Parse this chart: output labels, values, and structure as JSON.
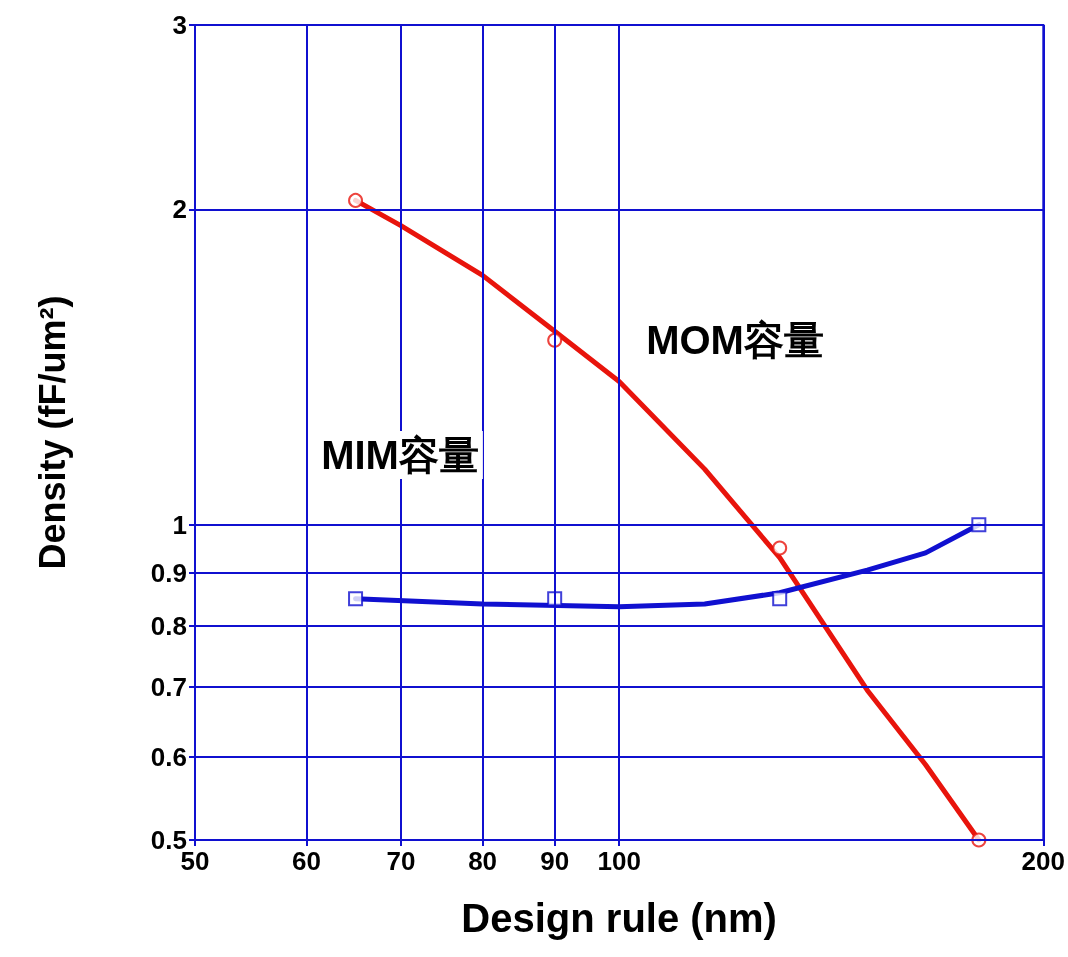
{
  "chart_data": {
    "type": "line",
    "xlabel": "Design rule (nm)",
    "ylabel": "Density (fF/um²)",
    "log": "xy",
    "grid": true,
    "xlim": [
      50,
      200
    ],
    "ylim": [
      0.5,
      3
    ],
    "xticks": [
      50,
      60,
      70,
      80,
      90,
      100,
      200
    ],
    "yticks": [
      0.5,
      0.6,
      0.7,
      0.8,
      0.9,
      1,
      2,
      3
    ],
    "series": [
      {
        "color": "#e8140c",
        "marker": "none",
        "x": [
          65,
          70,
          80,
          90,
          100,
          115,
          130,
          150,
          165,
          180
        ],
        "values": [
          2.04,
          1.93,
          1.73,
          1.53,
          1.37,
          1.13,
          0.93,
          0.695,
          0.59,
          0.5
        ]
      },
      {
        "type": "scatter",
        "color": "#e8140c",
        "marker": "circle",
        "x": [
          65,
          90,
          130,
          180
        ],
        "values": [
          2.04,
          1.5,
          0.95,
          0.5
        ]
      },
      {
        "color": "#1010d0",
        "marker": "none",
        "x": [
          65,
          80,
          100,
          115,
          130,
          150,
          165,
          180
        ],
        "values": [
          0.85,
          0.84,
          0.835,
          0.84,
          0.861,
          0.905,
          0.94,
          1.0
        ]
      },
      {
        "type": "scatter",
        "color": "#1010d0",
        "marker": "square",
        "x": [
          65,
          90,
          130,
          180
        ],
        "values": [
          0.85,
          0.85,
          0.85,
          1.0
        ]
      }
    ],
    "annotations": [
      "MOM容量",
      "MIM容量"
    ]
  }
}
